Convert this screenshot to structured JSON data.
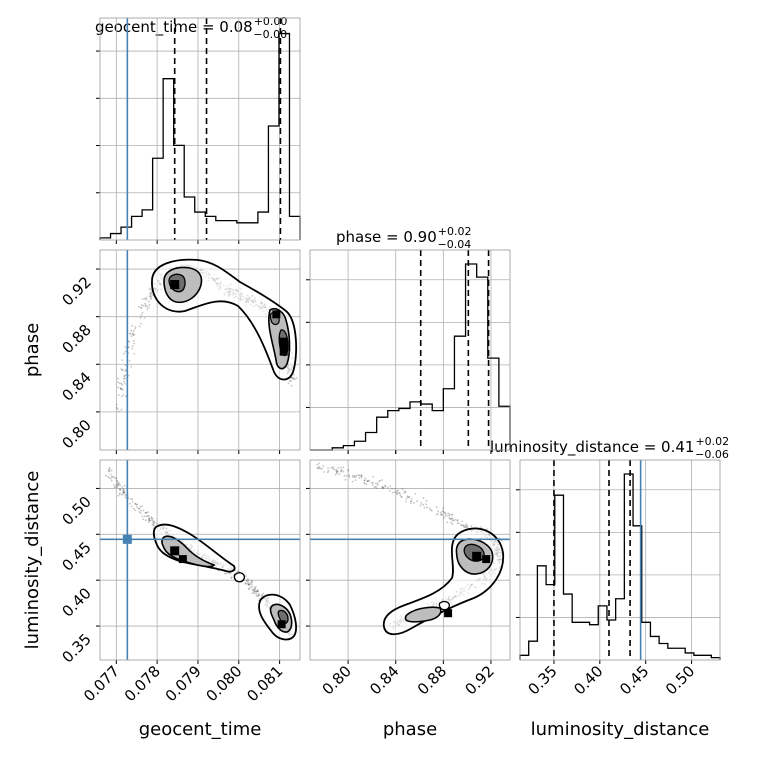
{
  "chart_data": {
    "type": "corner",
    "truth_color": "#4682b4",
    "parameters": [
      {
        "name": "geocent_time",
        "title": {
          "label": "geocent_time = 0.08",
          "sup": "+0.00",
          "sub": "−0.00"
        },
        "range": [
          0.0766,
          0.0815
        ],
        "ticks": [
          0.077,
          0.078,
          0.079,
          0.08,
          0.081
        ],
        "tick_labels": [
          "0.077",
          "0.078",
          "0.079",
          "0.080",
          "0.081"
        ],
        "truth": 0.07727,
        "quantiles": [
          0.07843,
          0.07921,
          0.08102
        ],
        "hist_edges": [
          0.0766,
          0.0812,
          0.0815
        ],
        "hist_counts": [
          1,
          3,
          6,
          11,
          14,
          38,
          75,
          44,
          20,
          13,
          11,
          9,
          9,
          8,
          8,
          13,
          53,
          96,
          11
        ]
      },
      {
        "name": "phase",
        "title": {
          "label": "phase = 0.90",
          "sup": "+0.02",
          "sub": "−0.04"
        },
        "range": [
          0.768,
          0.936
        ],
        "ticks": [
          0.8,
          0.84,
          0.88,
          0.92
        ],
        "tick_labels": [
          "0.80",
          "0.84",
          "0.88",
          "0.92"
        ],
        "quantiles": [
          0.861,
          0.901,
          0.918
        ],
        "hist_counts": [
          0,
          0,
          1,
          2,
          4,
          8,
          15,
          18,
          19,
          22,
          21,
          18,
          28,
          52,
          85,
          79,
          42,
          20
        ]
      },
      {
        "name": "luminosity_distance",
        "title": {
          "label": "luminosity_distance = 0.41",
          "sup": "+0.02",
          "sub": "−0.06"
        },
        "range": [
          0.313,
          0.531
        ],
        "ticks": [
          0.35,
          0.4,
          0.45,
          0.5
        ],
        "tick_labels": [
          "0.35",
          "0.40",
          "0.45",
          "0.50"
        ],
        "truth": 0.4445,
        "quantiles": [
          0.35,
          0.41,
          0.433
        ],
        "hist_counts": [
          2,
          8,
          40,
          32,
          70,
          28,
          16,
          16,
          15,
          23,
          17,
          26,
          79,
          57,
          16,
          10,
          7,
          5,
          5,
          3,
          2,
          2,
          1
        ]
      }
    ],
    "panels": {
      "phase_vs_geocent_time": {
        "x": "geocent_time",
        "y": "phase",
        "density_peaks": [
          {
            "x": 0.07843,
            "y": 0.907
          },
          {
            "x": 0.08092,
            "y": 0.882
          },
          {
            "x": 0.0811,
            "y": 0.859
          }
        ]
      },
      "luminosity_distance_vs_geocent_time": {
        "x": "geocent_time",
        "y": "luminosity_distance",
        "truth_point": {
          "x": 0.07727,
          "y": 0.4445
        },
        "density_peaks": [
          {
            "x": 0.07843,
            "y": 0.432
          },
          {
            "x": 0.07863,
            "y": 0.423
          },
          {
            "x": 0.08105,
            "y": 0.352
          }
        ]
      },
      "luminosity_distance_vs_phase": {
        "x": "phase",
        "y": "luminosity_distance",
        "truth_y": 0.4445,
        "density_peaks": [
          {
            "x": 0.908,
            "y": 0.426
          },
          {
            "x": 0.916,
            "y": 0.423
          },
          {
            "x": 0.884,
            "y": 0.364
          }
        ]
      }
    },
    "grid": true
  }
}
